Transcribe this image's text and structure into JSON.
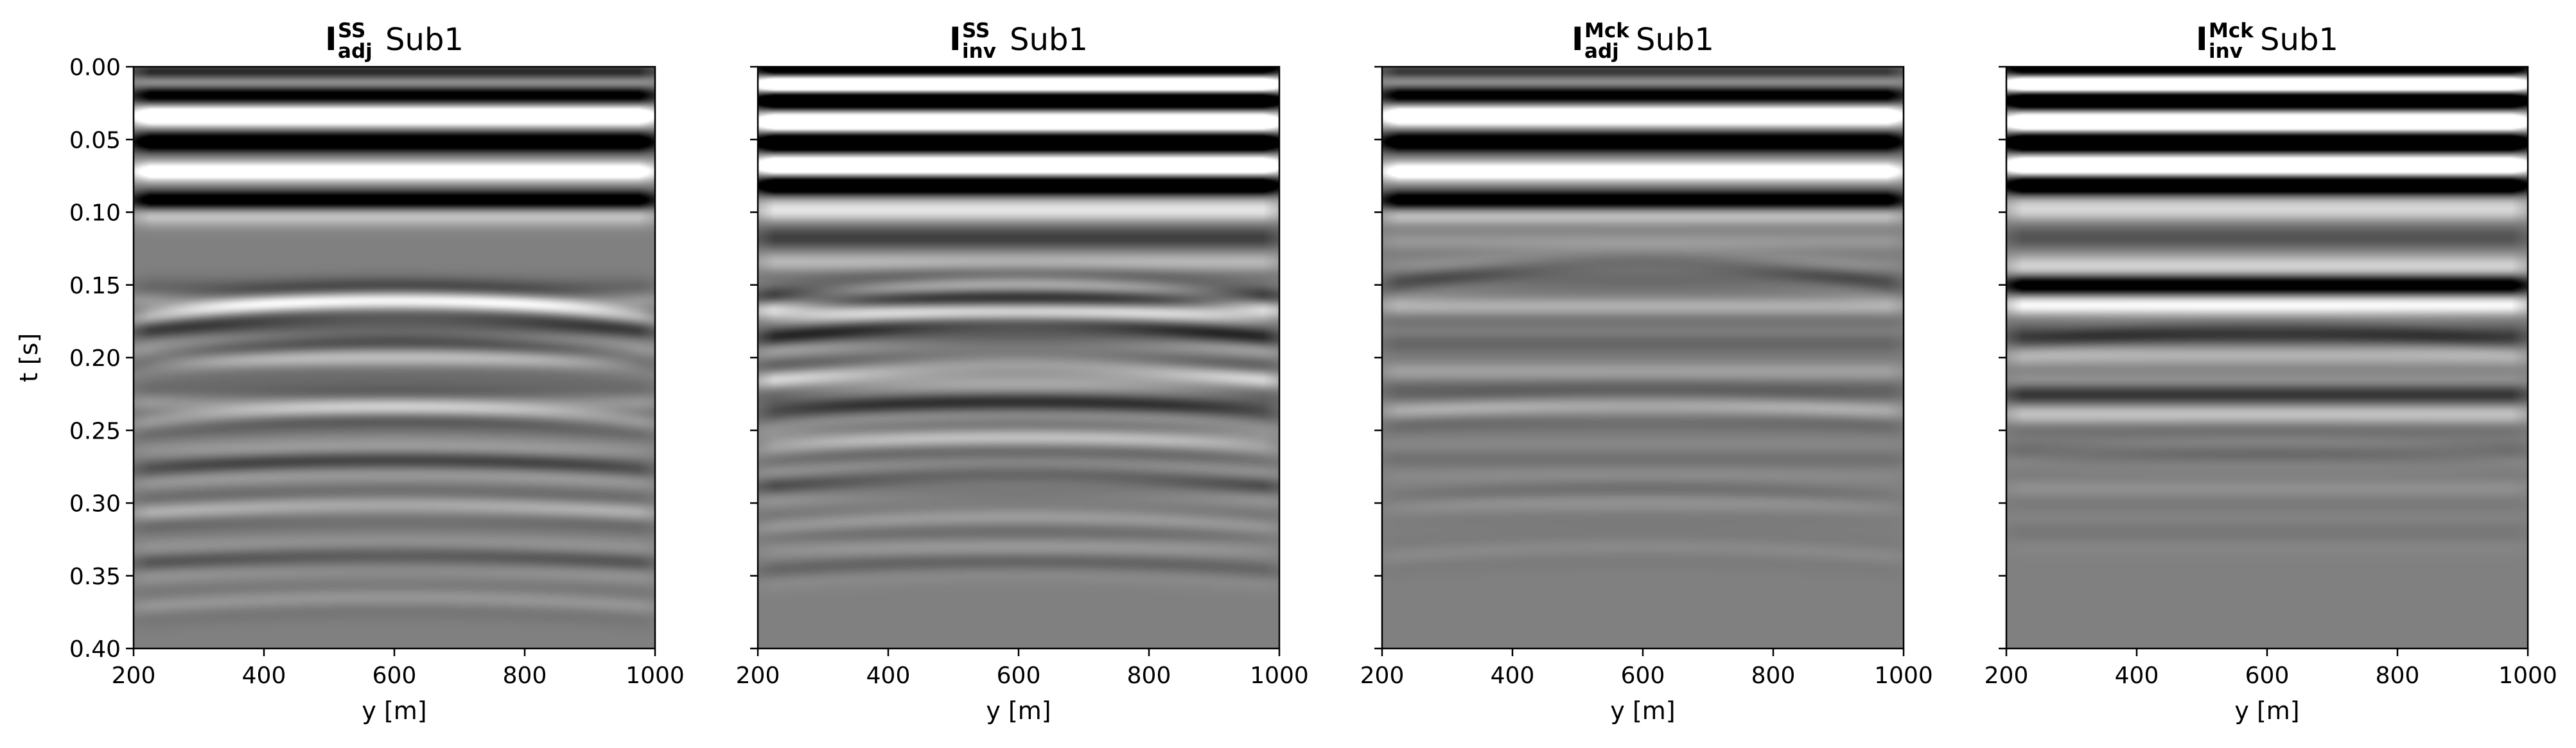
{
  "chart_data": [
    {
      "type": "heatmap",
      "title": {
        "symbol": "I",
        "superscript": "SS",
        "subscript": "adj",
        "suffix": "Sub1"
      },
      "xlabel": "y [m]",
      "ylabel": "t [s]",
      "xlim": [
        200,
        1000
      ],
      "ylim": [
        0.4,
        0.0
      ],
      "xticks": [
        "200",
        "400",
        "600",
        "800",
        "1000"
      ],
      "yticks": [
        "0.00",
        "0.05",
        "0.10",
        "0.15",
        "0.20",
        "0.25",
        "0.30",
        "0.35",
        "0.40"
      ],
      "colormap": "gray",
      "events": [
        {
          "t": 0.004,
          "amp": 0.95
        },
        {
          "t": 0.018,
          "amp": 1.0
        },
        {
          "t": 0.034,
          "amp": -1.0
        },
        {
          "t": 0.052,
          "amp": 1.0
        },
        {
          "t": 0.072,
          "amp": -1.0
        },
        {
          "t": 0.092,
          "amp": 1.0
        },
        {
          "t": 0.162,
          "amp": -0.35
        },
        {
          "t": 0.18,
          "amp": 0.22
        },
        {
          "t": 0.2,
          "amp": -0.25
        },
        {
          "t": 0.232,
          "amp": -0.28
        },
        {
          "t": 0.272,
          "amp": 0.15
        },
        {
          "t": 0.305,
          "amp": -0.12
        },
        {
          "t": 0.34,
          "amp": 0.1
        }
      ],
      "diffractions": [
        {
          "t0": 0.16,
          "y0": 600,
          "amp": -0.45
        },
        {
          "t0": 0.19,
          "y0": 600,
          "amp": 0.3
        },
        {
          "t0": 0.235,
          "y0": 600,
          "amp": -0.3
        },
        {
          "t0": 0.27,
          "y0": 600,
          "amp": 0.25
        },
        {
          "t0": 0.3,
          "y0": 600,
          "amp": -0.2
        },
        {
          "t0": 0.335,
          "y0": 600,
          "amp": 0.18
        },
        {
          "t0": 0.365,
          "y0": 600,
          "amp": -0.14
        }
      ]
    },
    {
      "type": "heatmap",
      "title": {
        "symbol": "I",
        "superscript": "SS",
        "subscript": "inv",
        "suffix": "Sub1"
      },
      "xlabel": "y [m]",
      "ylabel": "",
      "xlim": [
        200,
        1000
      ],
      "ylim": [
        0.4,
        0.0
      ],
      "xticks": [
        "200",
        "400",
        "600",
        "800",
        "1000"
      ],
      "yticks": [],
      "colormap": "gray",
      "events": [
        {
          "t": 0.002,
          "amp": 0.9
        },
        {
          "t": 0.012,
          "amp": -1.0
        },
        {
          "t": 0.022,
          "amp": 1.0
        },
        {
          "t": 0.038,
          "amp": -1.0
        },
        {
          "t": 0.052,
          "amp": 1.0
        },
        {
          "t": 0.068,
          "amp": -1.0
        },
        {
          "t": 0.082,
          "amp": 1.0
        },
        {
          "t": 0.1,
          "amp": -0.45
        },
        {
          "t": 0.118,
          "amp": 0.3
        },
        {
          "t": 0.135,
          "amp": -0.3
        },
        {
          "t": 0.16,
          "amp": 0.3
        },
        {
          "t": 0.168,
          "amp": -0.4
        },
        {
          "t": 0.185,
          "amp": 0.25
        },
        {
          "t": 0.215,
          "amp": -0.25
        },
        {
          "t": 0.232,
          "amp": 0.22
        },
        {
          "t": 0.255,
          "amp": -0.18
        },
        {
          "t": 0.29,
          "amp": 0.14
        },
        {
          "t": 0.33,
          "amp": -0.1
        }
      ],
      "diffractions": [
        {
          "t0": 0.15,
          "y0": 600,
          "amp": -0.3
        },
        {
          "t0": 0.175,
          "y0": 600,
          "amp": 0.28
        },
        {
          "t0": 0.205,
          "y0": 600,
          "amp": -0.28
        },
        {
          "t0": 0.23,
          "y0": 600,
          "amp": 0.26
        },
        {
          "t0": 0.255,
          "y0": 600,
          "amp": -0.24
        },
        {
          "t0": 0.28,
          "y0": 600,
          "amp": 0.22
        },
        {
          "t0": 0.31,
          "y0": 600,
          "amp": -0.18
        },
        {
          "t0": 0.34,
          "y0": 600,
          "amp": 0.14
        }
      ]
    },
    {
      "type": "heatmap",
      "title": {
        "symbol": "I",
        "superscript": "Mck",
        "subscript": "adj",
        "suffix": "Sub1"
      },
      "xlabel": "y [m]",
      "ylabel": "",
      "xlim": [
        200,
        1000
      ],
      "ylim": [
        0.4,
        0.0
      ],
      "xticks": [
        "200",
        "400",
        "600",
        "800",
        "1000"
      ],
      "yticks": [],
      "colormap": "gray",
      "events": [
        {
          "t": 0.004,
          "amp": 0.85
        },
        {
          "t": 0.018,
          "amp": 1.0
        },
        {
          "t": 0.034,
          "amp": -1.0
        },
        {
          "t": 0.052,
          "amp": 1.0
        },
        {
          "t": 0.072,
          "amp": -1.0
        },
        {
          "t": 0.092,
          "amp": 1.0
        },
        {
          "t": 0.12,
          "amp": -0.15
        },
        {
          "t": 0.145,
          "amp": 0.18
        },
        {
          "t": 0.165,
          "amp": -0.3
        },
        {
          "t": 0.19,
          "amp": 0.15
        },
        {
          "t": 0.21,
          "amp": -0.2
        },
        {
          "t": 0.235,
          "amp": -0.22
        },
        {
          "t": 0.27,
          "amp": 0.1
        },
        {
          "t": 0.3,
          "amp": -0.08
        }
      ],
      "diffractions": [
        {
          "t0": 0.135,
          "y0": 600,
          "amp": 0.15
        },
        {
          "t0": 0.23,
          "y0": 600,
          "amp": -0.1
        },
        {
          "t0": 0.29,
          "y0": 600,
          "amp": 0.08
        },
        {
          "t0": 0.33,
          "y0": 600,
          "amp": -0.06
        }
      ]
    },
    {
      "type": "heatmap",
      "title": {
        "symbol": "I",
        "superscript": "Mck",
        "subscript": "inv",
        "suffix": "Sub1"
      },
      "xlabel": "y [m]",
      "ylabel": "",
      "xlim": [
        200,
        1000
      ],
      "ylim": [
        0.4,
        0.0
      ],
      "xticks": [
        "200",
        "400",
        "600",
        "800",
        "1000"
      ],
      "yticks": [],
      "colormap": "gray",
      "events": [
        {
          "t": 0.002,
          "amp": 0.85
        },
        {
          "t": 0.012,
          "amp": -1.0
        },
        {
          "t": 0.022,
          "amp": 1.0
        },
        {
          "t": 0.038,
          "amp": -1.0
        },
        {
          "t": 0.052,
          "amp": 1.0
        },
        {
          "t": 0.068,
          "amp": -1.0
        },
        {
          "t": 0.082,
          "amp": 1.0
        },
        {
          "t": 0.1,
          "amp": -0.35
        },
        {
          "t": 0.118,
          "amp": 0.2
        },
        {
          "t": 0.135,
          "amp": -0.2
        },
        {
          "t": 0.15,
          "amp": 0.85
        },
        {
          "t": 0.165,
          "amp": -0.5
        },
        {
          "t": 0.185,
          "amp": 0.35
        },
        {
          "t": 0.2,
          "amp": -0.2
        },
        {
          "t": 0.225,
          "amp": 0.4
        },
        {
          "t": 0.24,
          "amp": -0.3
        },
        {
          "t": 0.265,
          "amp": 0.15
        },
        {
          "t": 0.29,
          "amp": -0.1
        },
        {
          "t": 0.32,
          "amp": 0.06
        }
      ],
      "diffractions": [
        {
          "t0": 0.18,
          "y0": 600,
          "amp": 0.08
        },
        {
          "t0": 0.26,
          "y0": 600,
          "amp": -0.06
        }
      ]
    }
  ]
}
